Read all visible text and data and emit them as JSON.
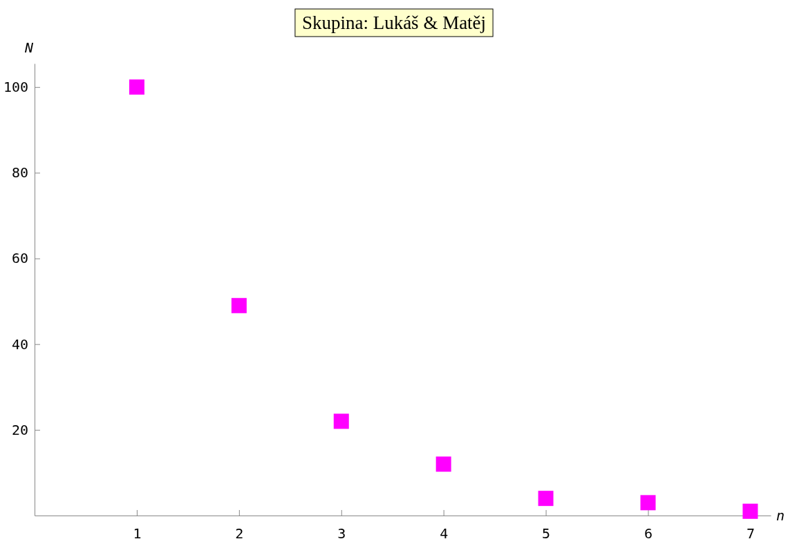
{
  "chart_data": {
    "type": "scatter",
    "title": "Skupina: Lukáš & Matěj",
    "xlabel": "n",
    "ylabel": "N",
    "x": [
      1,
      2,
      3,
      4,
      5,
      6,
      7
    ],
    "series": [
      {
        "color": "#ff00ff",
        "values": [
          100,
          49,
          22,
          12,
          4,
          3,
          1
        ]
      }
    ],
    "xlim": [
      0,
      7.2
    ],
    "ylim": [
      0,
      105.5
    ],
    "xticks": [
      1,
      2,
      3,
      4,
      5,
      6,
      7
    ],
    "yticks": [
      20,
      40,
      60,
      80,
      100
    ],
    "marker": "square",
    "grid": false,
    "legend": false
  }
}
